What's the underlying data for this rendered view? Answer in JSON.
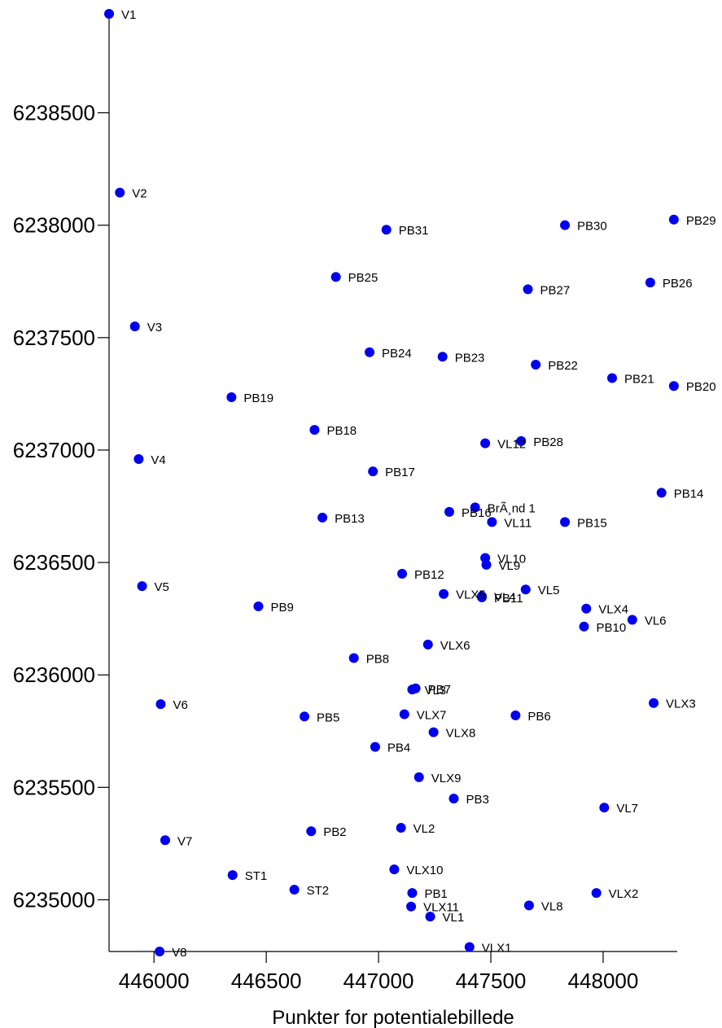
{
  "chart_data": {
    "type": "scatter",
    "title": "",
    "xlabel": "Punkter for potentialebillede",
    "ylabel": "",
    "xlim": [
      445800,
      448330
    ],
    "ylim": [
      6234770,
      6238940
    ],
    "xticks": [
      446000,
      446500,
      447000,
      447500,
      448000
    ],
    "yticks": [
      6235000,
      6235500,
      6236000,
      6236500,
      6237000,
      6237500,
      6238000,
      6238500
    ],
    "grid": false,
    "marker_color": "#0000ee",
    "points": [
      {
        "label": "V1",
        "x": 445800,
        "y": 6238940
      },
      {
        "label": "V2",
        "x": 445848,
        "y": 6238145
      },
      {
        "label": "V3",
        "x": 445915,
        "y": 6237550
      },
      {
        "label": "V4",
        "x": 445932,
        "y": 6236960
      },
      {
        "label": "V5",
        "x": 445947,
        "y": 6236395
      },
      {
        "label": "V6",
        "x": 446030,
        "y": 6235870
      },
      {
        "label": "V7",
        "x": 446050,
        "y": 6235265
      },
      {
        "label": "V8",
        "x": 446025,
        "y": 6234770
      },
      {
        "label": "ST1",
        "x": 446350,
        "y": 6235110
      },
      {
        "label": "ST2",
        "x": 446625,
        "y": 6235045
      },
      {
        "label": "PB1",
        "x": 447150,
        "y": 6235030
      },
      {
        "label": "PB2",
        "x": 446700,
        "y": 6235305
      },
      {
        "label": "PB3",
        "x": 447335,
        "y": 6235450
      },
      {
        "label": "PB4",
        "x": 446985,
        "y": 6235680
      },
      {
        "label": "PB5",
        "x": 446670,
        "y": 6235815
      },
      {
        "label": "PB6",
        "x": 447610,
        "y": 6235820
      },
      {
        "label": "PB7",
        "x": 447165,
        "y": 6235940
      },
      {
        "label": "PB8",
        "x": 446890,
        "y": 6236075
      },
      {
        "label": "PB9",
        "x": 446465,
        "y": 6236305
      },
      {
        "label": "PB10",
        "x": 447915,
        "y": 6236215
      },
      {
        "label": "PB11",
        "x": 447460,
        "y": 6236345
      },
      {
        "label": "PB12",
        "x": 447105,
        "y": 6236450
      },
      {
        "label": "PB13",
        "x": 446750,
        "y": 6236700
      },
      {
        "label": "PB14",
        "x": 448260,
        "y": 6236810
      },
      {
        "label": "PB15",
        "x": 447830,
        "y": 6236680
      },
      {
        "label": "PB16",
        "x": 447315,
        "y": 6236725
      },
      {
        "label": "PB17",
        "x": 446975,
        "y": 6236905
      },
      {
        "label": "PB18",
        "x": 446715,
        "y": 6237090
      },
      {
        "label": "PB19",
        "x": 446345,
        "y": 6237235
      },
      {
        "label": "PB20",
        "x": 448315,
        "y": 6237285
      },
      {
        "label": "PB21",
        "x": 448040,
        "y": 6237320
      },
      {
        "label": "PB22",
        "x": 447700,
        "y": 6237380
      },
      {
        "label": "PB23",
        "x": 447285,
        "y": 6237415
      },
      {
        "label": "PB24",
        "x": 446960,
        "y": 6237435
      },
      {
        "label": "PB25",
        "x": 446810,
        "y": 6237770
      },
      {
        "label": "PB26",
        "x": 448210,
        "y": 6237745
      },
      {
        "label": "PB27",
        "x": 447665,
        "y": 6237715
      },
      {
        "label": "PB28",
        "x": 447635,
        "y": 6237040
      },
      {
        "label": "PB29",
        "x": 448315,
        "y": 6238025
      },
      {
        "label": "PB30",
        "x": 447830,
        "y": 6238000
      },
      {
        "label": "PB31",
        "x": 447035,
        "y": 6237980
      },
      {
        "label": "VL1",
        "x": 447230,
        "y": 6234925
      },
      {
        "label": "VL2",
        "x": 447100,
        "y": 6235320
      },
      {
        "label": "VL3",
        "x": 447150,
        "y": 6235935
      },
      {
        "label": "VL4",
        "x": 447460,
        "y": 6236350
      },
      {
        "label": "VL5",
        "x": 447655,
        "y": 6236380
      },
      {
        "label": "VL6",
        "x": 448130,
        "y": 6236245
      },
      {
        "label": "VL7",
        "x": 448005,
        "y": 6235410
      },
      {
        "label": "VL8",
        "x": 447670,
        "y": 6234975
      },
      {
        "label": "VL9",
        "x": 447480,
        "y": 6236490
      },
      {
        "label": "VL10",
        "x": 447475,
        "y": 6236520
      },
      {
        "label": "VL11",
        "x": 447505,
        "y": 6236680
      },
      {
        "label": "VL12",
        "x": 447475,
        "y": 6237030
      },
      {
        "label": "VLX1",
        "x": 447405,
        "y": 6234790
      },
      {
        "label": "VLX2",
        "x": 447970,
        "y": 6235030
      },
      {
        "label": "VLX3",
        "x": 448225,
        "y": 6235875
      },
      {
        "label": "VLX4",
        "x": 447925,
        "y": 6236295
      },
      {
        "label": "VLX5",
        "x": 447290,
        "y": 6236360
      },
      {
        "label": "VLX6",
        "x": 447220,
        "y": 6236135
      },
      {
        "label": "VLX7",
        "x": 447115,
        "y": 6235825
      },
      {
        "label": "VLX8",
        "x": 447245,
        "y": 6235745
      },
      {
        "label": "VLX9",
        "x": 447180,
        "y": 6235545
      },
      {
        "label": "VLX10",
        "x": 447070,
        "y": 6235135
      },
      {
        "label": "VLX11",
        "x": 447145,
        "y": 6234970
      },
      {
        "label": "BrÃ¸nd 1",
        "x": 447430,
        "y": 6236745
      }
    ]
  }
}
